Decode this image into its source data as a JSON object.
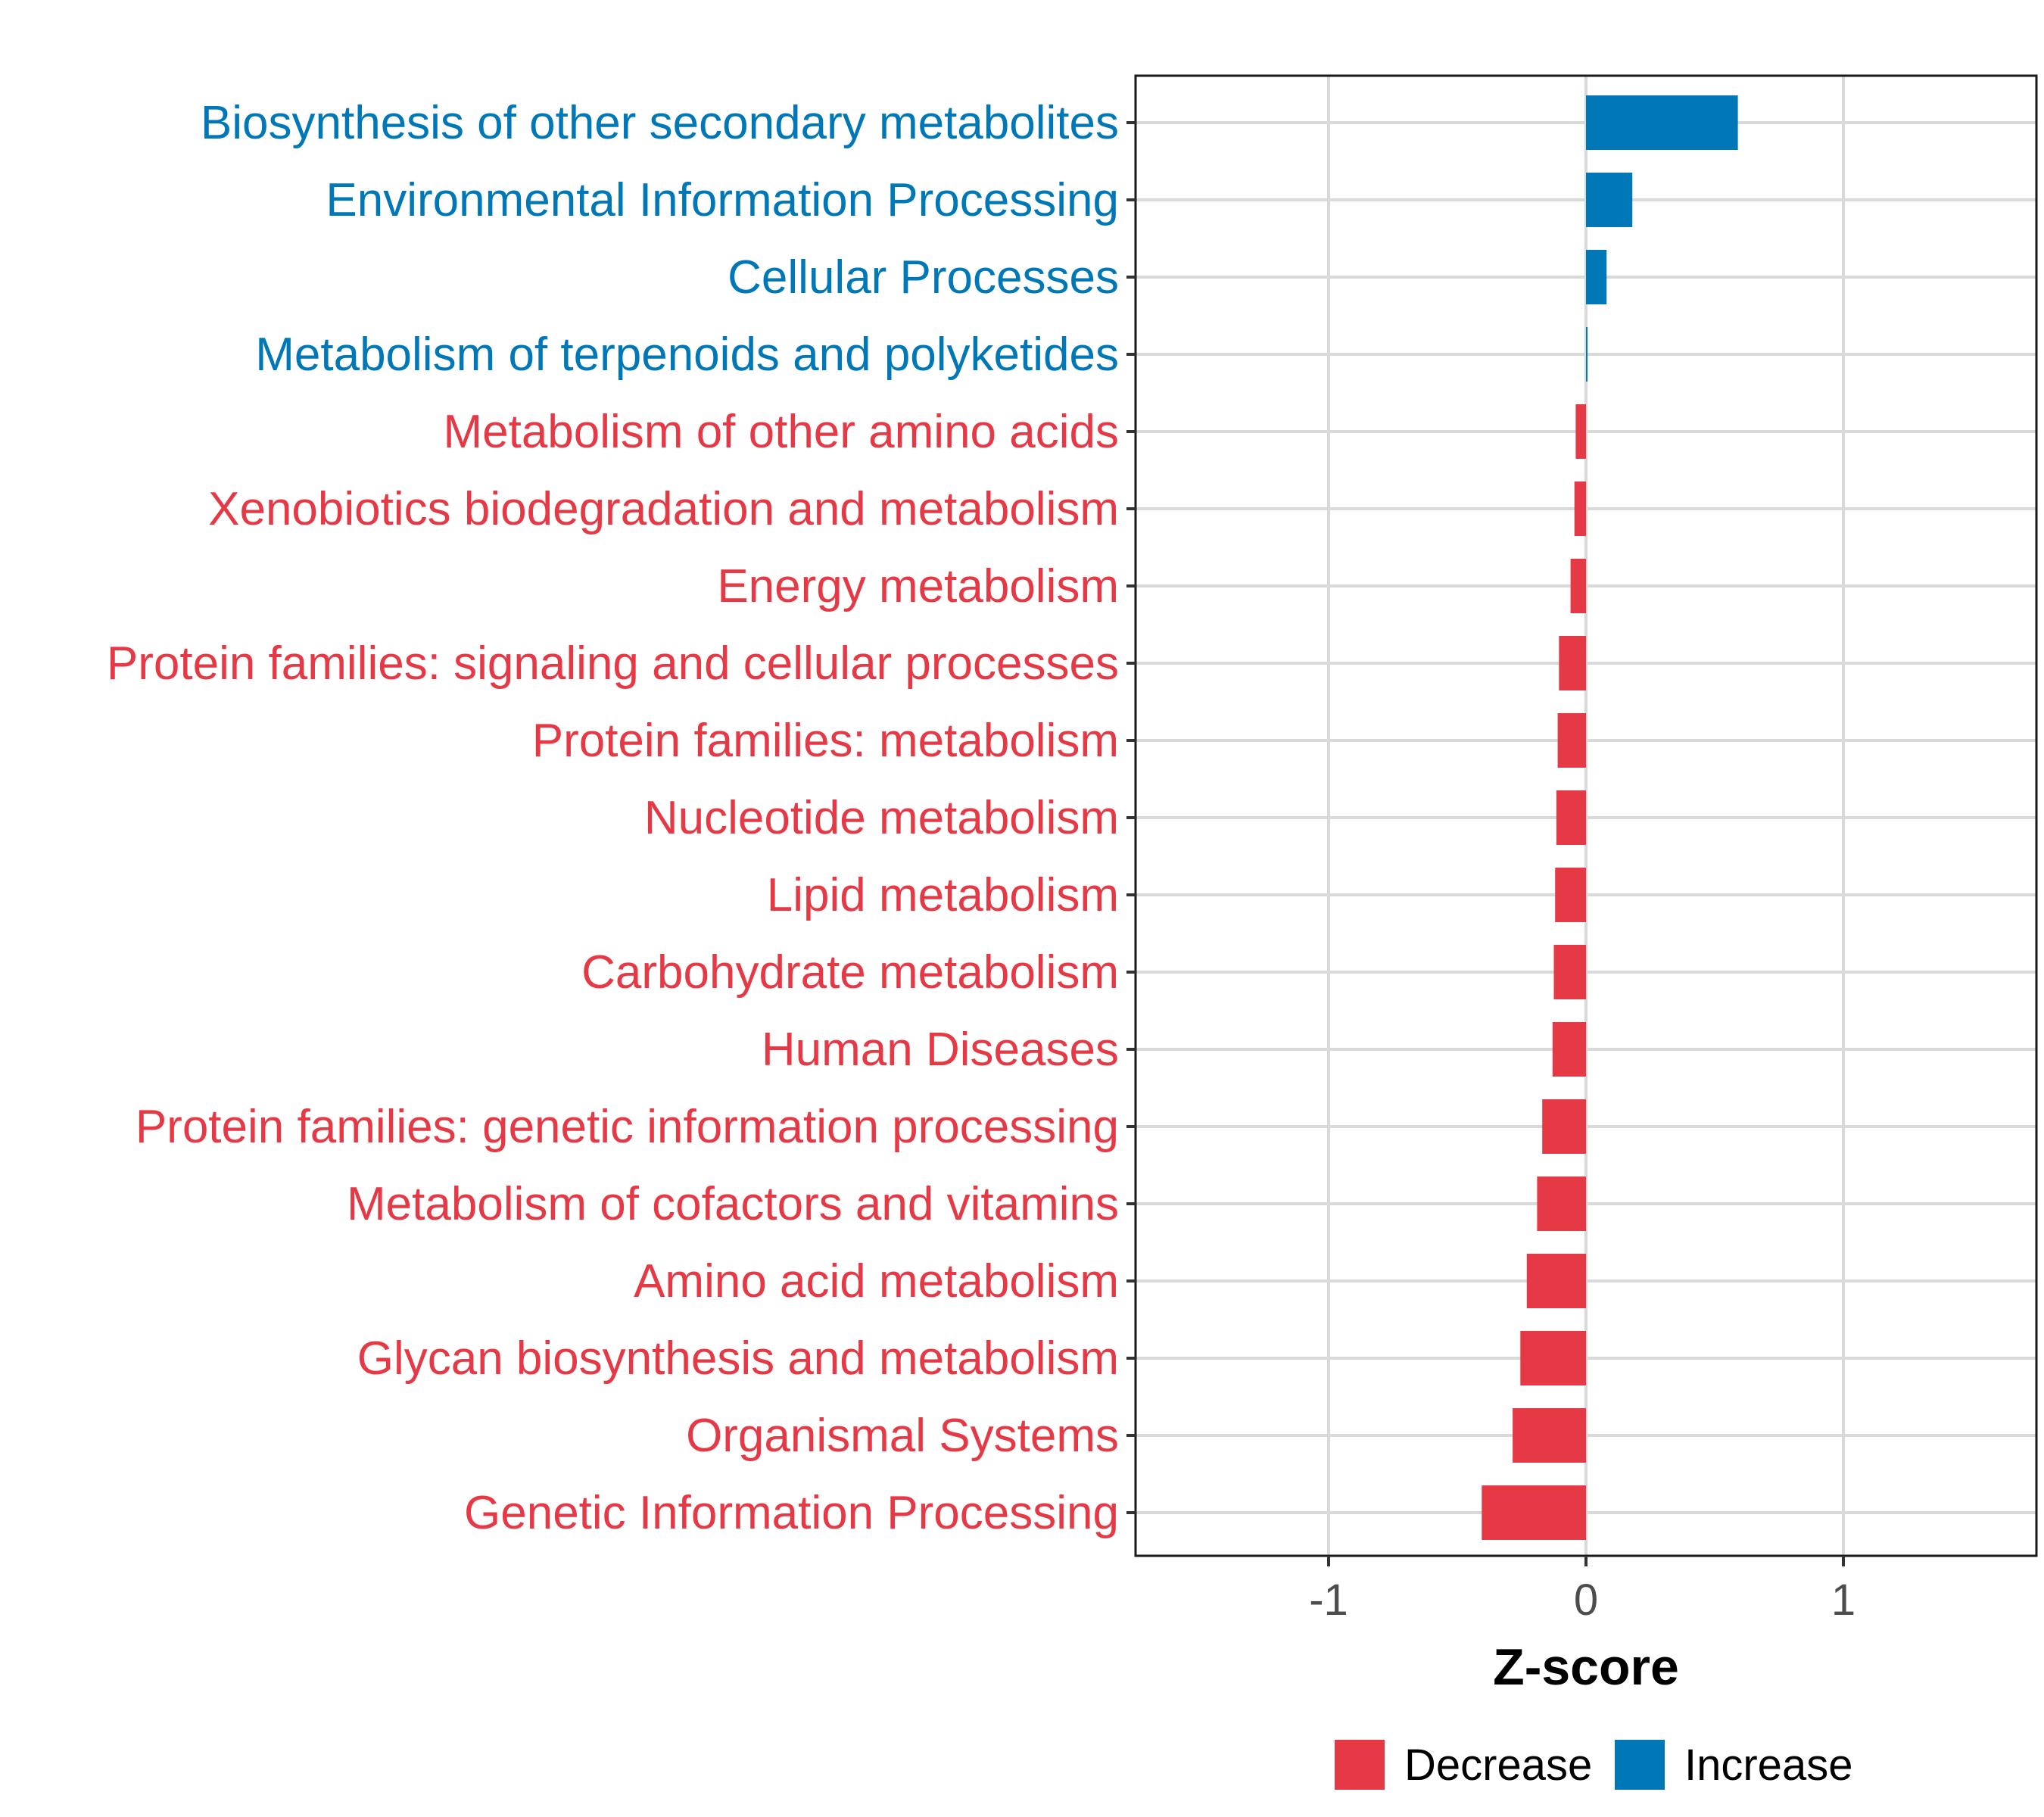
{
  "chart_data": {
    "type": "bar",
    "orientation": "horizontal",
    "title": "",
    "xlabel": "Z-score",
    "ylabel": "",
    "xlim": [
      -1.75,
      1.75
    ],
    "xticks": [
      -1,
      0,
      1
    ],
    "grid": true,
    "legend_position": "bottom",
    "colors": {
      "Decrease": "#e63946",
      "Increase": "#0077b6"
    },
    "legend": [
      {
        "label": "Decrease",
        "color": "#e63946"
      },
      {
        "label": "Increase",
        "color": "#0077b6"
      }
    ],
    "categories": [
      "Biosynthesis of other secondary metabolites",
      "Environmental Information Processing",
      "Cellular Processes",
      "Metabolism of terpenoids and polyketides",
      "Metabolism of other amino acids",
      "Xenobiotics biodegradation and metabolism",
      "Energy metabolism",
      "Protein families: signaling and cellular processes",
      "Protein families: metabolism",
      "Nucleotide metabolism",
      "Lipid metabolism",
      "Carbohydrate metabolism",
      "Human Diseases",
      "Protein families: genetic information processing",
      "Metabolism of cofactors and vitamins",
      "Amino acid metabolism",
      "Glycan biosynthesis and metabolism",
      "Organismal Systems",
      "Genetic Information Processing"
    ],
    "values": [
      0.59,
      0.18,
      0.08,
      0.005,
      -0.04,
      -0.045,
      -0.06,
      -0.105,
      -0.11,
      -0.115,
      -0.12,
      -0.125,
      -0.13,
      -0.17,
      -0.19,
      -0.23,
      -0.255,
      -0.285,
      -0.405
    ],
    "groups": [
      "Increase",
      "Increase",
      "Increase",
      "Increase",
      "Decrease",
      "Decrease",
      "Decrease",
      "Decrease",
      "Decrease",
      "Decrease",
      "Decrease",
      "Decrease",
      "Decrease",
      "Decrease",
      "Decrease",
      "Decrease",
      "Decrease",
      "Decrease",
      "Decrease"
    ]
  }
}
